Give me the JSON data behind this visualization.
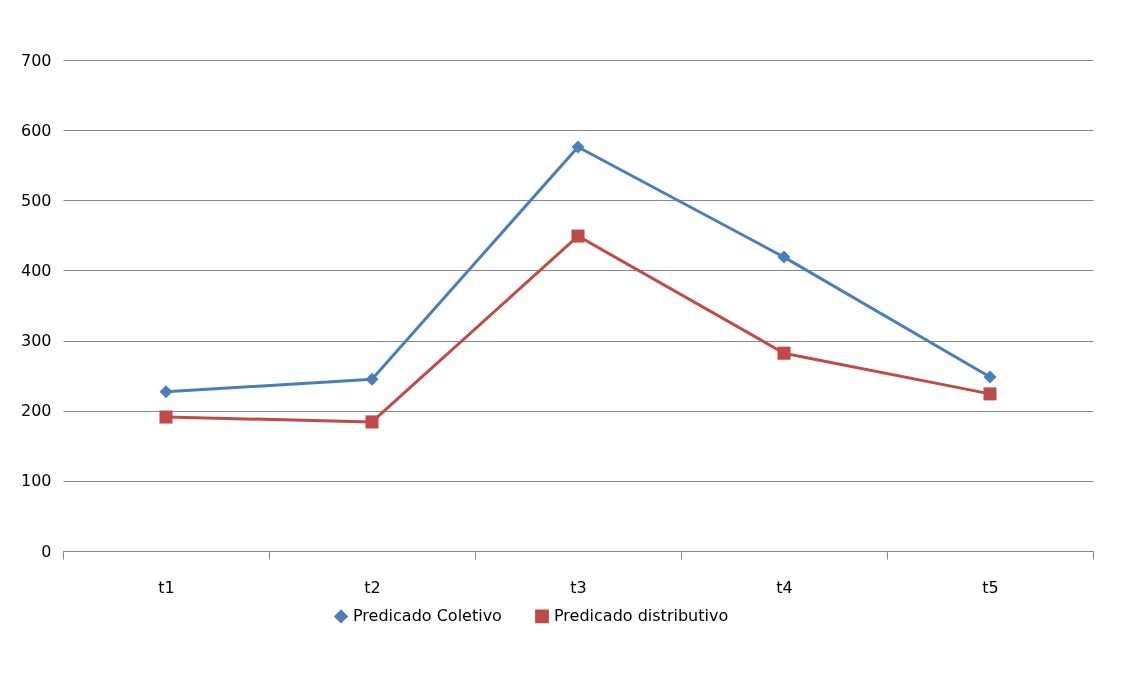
{
  "chart_data": {
    "type": "line",
    "categories": [
      "t1",
      "t2",
      "t3",
      "t4",
      "t5"
    ],
    "series": [
      {
        "name": "Predicado Coletivo",
        "color": "#4a7ebb",
        "marker": "diamond",
        "values": [
          227,
          245,
          576,
          419,
          248
        ]
      },
      {
        "name": "Predicado distributivo",
        "color": "#be4b48",
        "marker": "square",
        "values": [
          191,
          184,
          449,
          282,
          224
        ]
      }
    ],
    "ylim": [
      0,
      700
    ],
    "yticks": [
      0,
      100,
      200,
      300,
      400,
      500,
      600,
      700
    ],
    "grid": "y",
    "legend": "bottom",
    "line_style": "solid"
  }
}
